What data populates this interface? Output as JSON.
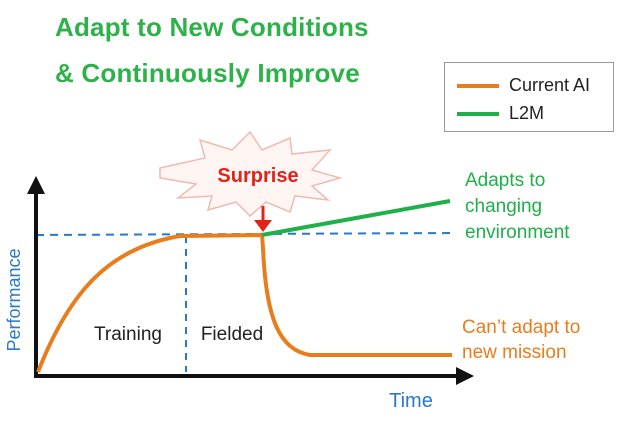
{
  "title": {
    "line1": "Adapt to New Conditions",
    "line2": "& Continuously Improve"
  },
  "legend": {
    "items": [
      {
        "label": "Current AI",
        "color": "#e87d1e"
      },
      {
        "label": "L2M",
        "color": "#1fb04a"
      }
    ]
  },
  "axes": {
    "x_label": "Time",
    "y_label": "Performance",
    "label_color": "#2a78c8"
  },
  "phases": {
    "training": "Training",
    "fielded": "Fielded"
  },
  "event": {
    "label": "Surprise",
    "color": "#e2231a"
  },
  "annotations": {
    "adapts": [
      "Adapts to",
      "changing",
      "environment"
    ],
    "cant_adapt": [
      "Can’t adapt to",
      "new mission"
    ]
  },
  "colors": {
    "title": "#2db24a",
    "current_ai": "#e87d1e",
    "l2m": "#1fb04a",
    "reference_line": "#2a78c8",
    "burst_outline": "#f0b9b2"
  }
}
